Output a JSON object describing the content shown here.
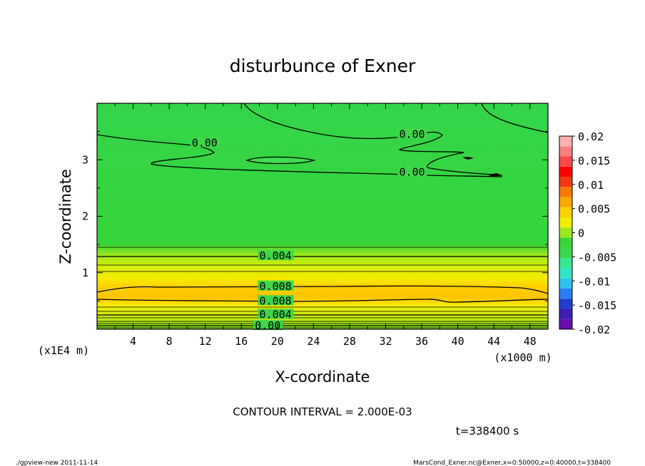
{
  "chart_data": {
    "type": "heatmap",
    "title": "disturbunce of Exner",
    "xlabel": "X-coordinate",
    "ylabel": "Z-coordinate",
    "x_unit": "(x1000 m)",
    "y_unit": "(x1E4 m)",
    "xlim": [
      0,
      50
    ],
    "ylim": [
      0,
      4
    ],
    "x_ticks": [
      4,
      8,
      12,
      16,
      20,
      24,
      28,
      32,
      36,
      40,
      44,
      48
    ],
    "y_ticks": [
      1,
      2,
      3
    ],
    "colorbar": {
      "ticks": [
        "0.02",
        "0.015",
        "0.01",
        "0.005",
        "0",
        "-0.005",
        "-0.01",
        "-0.015",
        "-0.02"
      ],
      "range": [
        -0.02,
        0.02
      ],
      "colors": [
        "#6a0dad",
        "#3a1fb0",
        "#1f3fd0",
        "#2a7ff0",
        "#2fc0f0",
        "#32e6c8",
        "#34e890",
        "#3ad84a",
        "#37d637",
        "#9be81f",
        "#f0f000",
        "#fdd000",
        "#fba800",
        "#f87800",
        "#f03a10",
        "#ff0000",
        "#ff4a4a",
        "#ff8080",
        "#ffb0b0"
      ]
    },
    "contour_labels": [
      {
        "text": "0.00",
        "x": 10.5,
        "z": 3.3
      },
      {
        "text": "0.00",
        "x": 33.5,
        "z": 3.45
      },
      {
        "text": "0.00",
        "x": 33.5,
        "z": 2.78
      },
      {
        "text": "0.004",
        "x": 18.0,
        "z": 1.3
      },
      {
        "text": "0.008",
        "x": 18.0,
        "z": 0.76
      },
      {
        "text": "0.008",
        "x": 18.0,
        "z": 0.5
      },
      {
        "text": "0.004",
        "x": 18.0,
        "z": 0.26
      },
      {
        "text": "0.00",
        "x": 17.5,
        "z": 0.06
      }
    ],
    "contour_interval": "CONTOUR INTERVAL = 2.000E-03",
    "time": "t=338400 s"
  },
  "footer": {
    "left": "./gpview-new   2011-11-14",
    "right": "MarsCond_Exner.nc@Exner,x=0:50000,z=0:40000,t=338400"
  }
}
